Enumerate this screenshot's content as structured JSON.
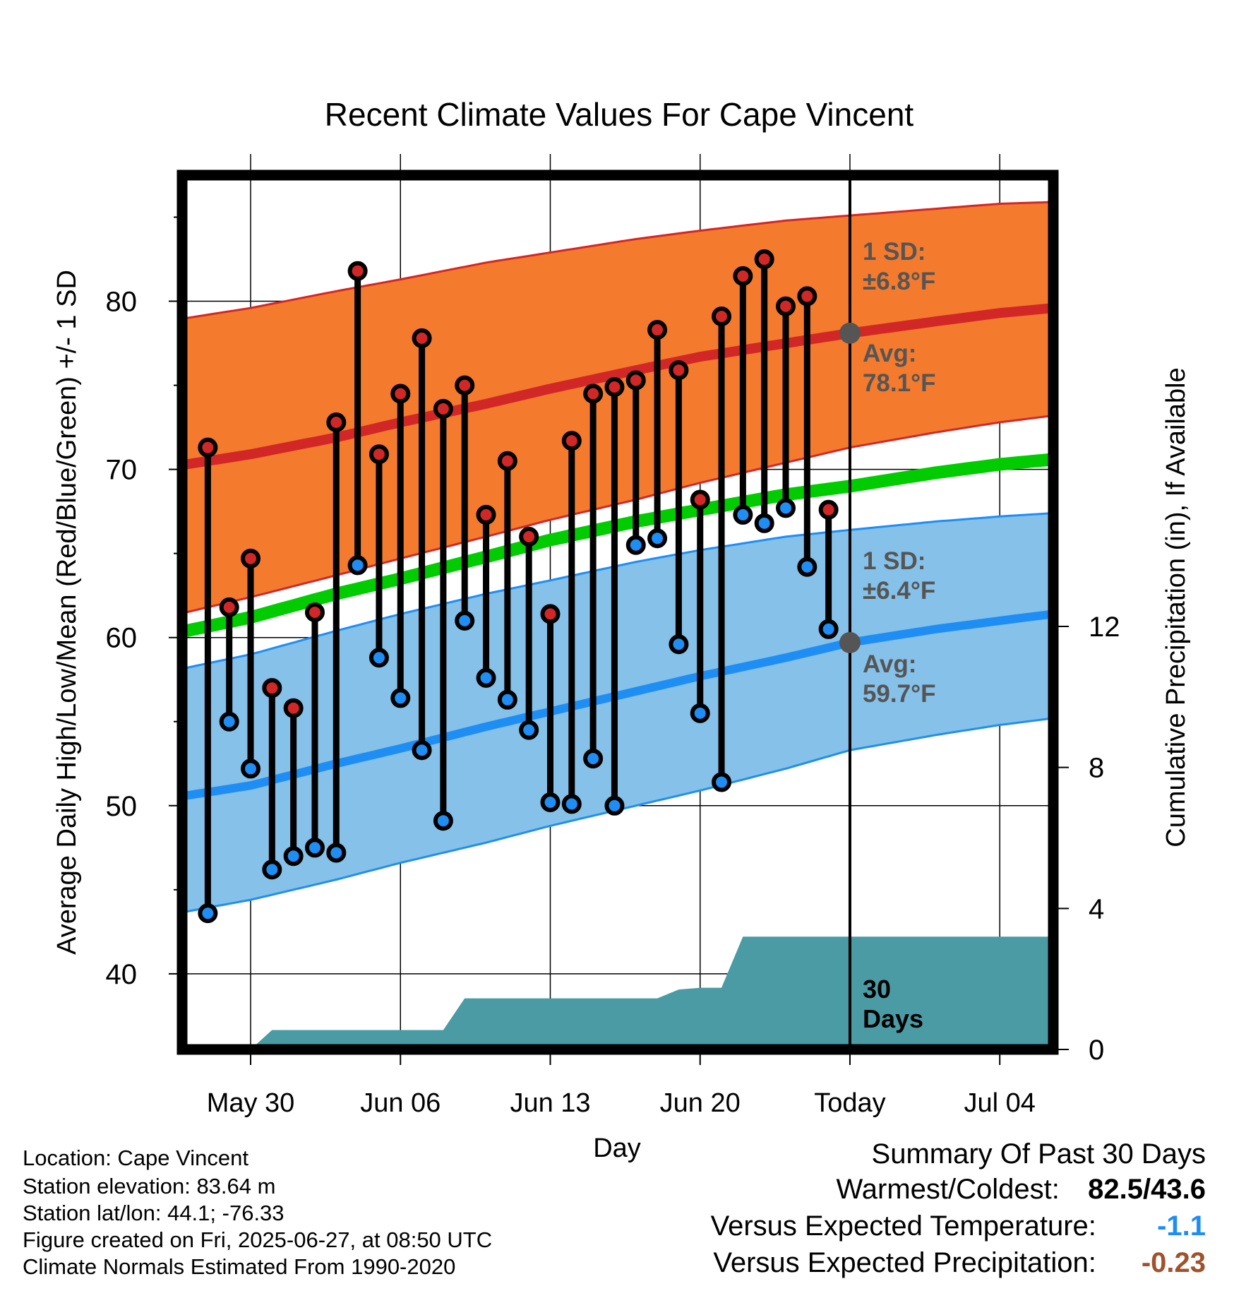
{
  "chart_data": {
    "type": "line",
    "title": "Recent Climate Values For Cape Vincent",
    "xlabel": "Day",
    "ylabel_left": "Average Daily High/Low/Mean (Red/Blue/Green) +/- 1 SD",
    "ylabel_right": "Cumulative Precipitation (in), If Available",
    "x_tick_labels": [
      "May 30",
      "Jun 06",
      "Jun 13",
      "Jun 20",
      "Today",
      "Jul 04"
    ],
    "y_left_ticks": [
      40,
      50,
      60,
      70,
      80
    ],
    "y_left_range": [
      35.5,
      87.5
    ],
    "y_right_ticks": [
      0,
      4,
      8,
      12
    ],
    "y_right_range": [
      0,
      24.8
    ],
    "x_range_days": [
      -31.2,
      9.5
    ],
    "x_tick_days": [
      -28,
      -21,
      -14,
      -7,
      0,
      7
    ],
    "normals": {
      "days": [
        -31,
        -28,
        -24,
        -21,
        -17,
        -14,
        -10,
        -7,
        -3,
        0,
        4,
        7,
        9.5
      ],
      "high_mean": [
        70.3,
        70.9,
        71.9,
        72.8,
        73.9,
        74.8,
        75.9,
        76.7,
        77.5,
        78.1,
        78.8,
        79.3,
        79.6
      ],
      "high_upper": [
        79.0,
        79.6,
        80.6,
        81.3,
        82.3,
        82.9,
        83.7,
        84.2,
        84.8,
        85.1,
        85.5,
        85.8,
        85.9
      ],
      "high_lower": [
        61.5,
        62.4,
        63.7,
        64.7,
        66.0,
        67.0,
        68.2,
        69.2,
        70.4,
        71.3,
        72.2,
        72.8,
        73.2
      ],
      "mean": [
        60.4,
        61.2,
        62.6,
        63.5,
        64.8,
        65.8,
        66.9,
        67.6,
        68.5,
        69.0,
        69.8,
        70.3,
        70.6
      ],
      "low_mean": [
        50.6,
        51.2,
        52.5,
        53.4,
        54.7,
        55.6,
        56.8,
        57.7,
        58.8,
        59.7,
        60.5,
        61.0,
        61.4
      ],
      "low_upper": [
        58.2,
        59.0,
        60.4,
        61.4,
        62.6,
        63.4,
        64.5,
        65.2,
        66.0,
        66.4,
        66.9,
        67.2,
        67.4
      ],
      "low_lower": [
        43.7,
        44.4,
        45.6,
        46.6,
        47.8,
        48.8,
        50.0,
        50.9,
        52.2,
        53.3,
        54.2,
        54.8,
        55.2
      ]
    },
    "observed": {
      "days": [
        -30,
        -29,
        -28,
        -27,
        -26,
        -25,
        -24,
        -23,
        -22,
        -21,
        -20,
        -19,
        -18,
        -17,
        -16,
        -15,
        -14,
        -13,
        -12,
        -11,
        -10,
        -9,
        -8,
        -7,
        -6,
        -5,
        -4,
        -3,
        -2,
        -1
      ],
      "high": [
        71.3,
        61.8,
        64.7,
        57.0,
        55.8,
        61.5,
        72.8,
        81.8,
        70.9,
        74.5,
        77.8,
        73.6,
        75.0,
        67.3,
        70.5,
        66.0,
        61.4,
        71.7,
        74.5,
        74.9,
        75.3,
        78.3,
        75.9,
        68.2,
        79.1,
        81.5,
        82.5,
        79.7,
        80.3,
        67.6
      ],
      "low": [
        43.6,
        55.0,
        52.2,
        46.2,
        47.0,
        47.5,
        47.2,
        64.3,
        58.8,
        56.4,
        53.3,
        49.1,
        61.0,
        57.6,
        56.3,
        54.5,
        50.2,
        50.1,
        52.8,
        50.0,
        65.5,
        65.9,
        59.6,
        55.5,
        51.4,
        67.3,
        66.8,
        67.7,
        64.2,
        60.5
      ]
    },
    "precipitation": {
      "days": [
        -28,
        -27,
        -19,
        -18,
        -9,
        -8,
        -7,
        -6,
        -5,
        -4,
        9.5
      ],
      "cumulative_in": [
        0,
        0.55,
        0.55,
        1.45,
        1.45,
        1.7,
        1.75,
        1.75,
        3.2,
        3.2,
        3.2
      ]
    },
    "annotations": {
      "high_sd": [
        "1 SD:",
        "±6.8°F"
      ],
      "high_avg": [
        "Avg:",
        "78.1°F"
      ],
      "low_sd": [
        "1 SD:",
        "±6.4°F"
      ],
      "low_avg": [
        "Avg:",
        "59.7°F"
      ],
      "days_label": [
        "30",
        "Days"
      ]
    },
    "colors": {
      "high_band": "#f47a2e",
      "high_line": "#d22727",
      "mean_line": "#00cc00",
      "low_band": "#85c1e8",
      "low_line": "#1e8ef4",
      "precip": "#4a9ba4",
      "annotation_text": "#555555"
    }
  },
  "info": {
    "location": "Location: Cape Vincent",
    "elevation": "Station elevation: 83.64 m",
    "latlon": "Station lat/lon: 44.1; -76.33",
    "created": "Figure created on Fri, 2025-06-27, at 08:50 UTC",
    "normals": "Climate Normals Estimated From 1990-2020"
  },
  "summary": {
    "title": "Summary Of Past 30 Days",
    "warmest_label": "Warmest/Coldest:",
    "warmest_value": "82.5/43.6",
    "temp_label": "Versus Expected Temperature:",
    "temp_value": "-1.1",
    "temp_color": "#1e8ef4",
    "precip_label": "Versus Expected Precipitation:",
    "precip_value": "-0.23",
    "precip_color": "#a0522d"
  }
}
